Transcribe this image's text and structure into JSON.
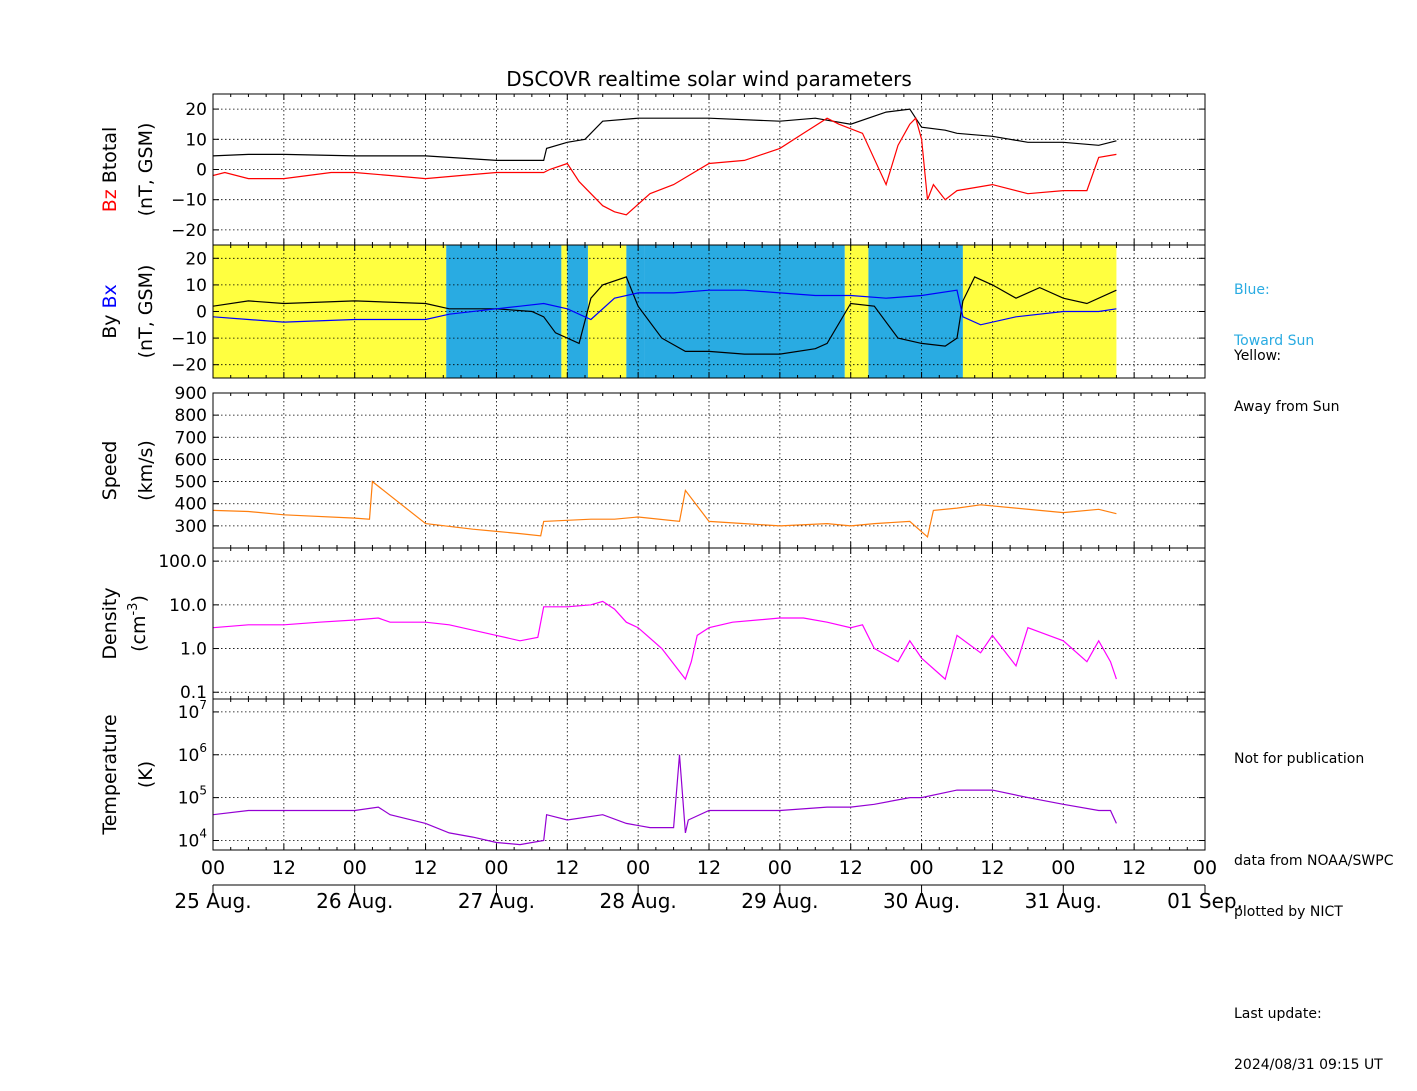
{
  "title": "DSCOVR realtime solar wind parameters",
  "colors": {
    "btotal": "#000000",
    "bz": "#ff0000",
    "by": "#000000",
    "bx": "#0000ff",
    "speed": "#ff7f0e",
    "density": "#ff00ff",
    "temperature": "#9400d3",
    "toward_sun": "#29abe2",
    "away_from_sun": "#ffff40"
  },
  "notes": {
    "toward_line1": "Blue:",
    "toward_line2": "Toward Sun",
    "away_line1": "Yellow:",
    "away_line2": "Away from Sun",
    "not_for_publication": "Not for publication",
    "data_from": "data from NOAA/SWPC",
    "plotted_by": "plotted by NICT",
    "last_update_label": "Last update:",
    "last_update_value": "2024/08/31 09:15 UT"
  },
  "chart_data": [
    {
      "type": "line",
      "panel": "magnetic-field-bz-btotal",
      "ylabel_parts": [
        "Bz",
        "Btotal",
        "(nT, GSM)"
      ],
      "ylim": [
        -25,
        25
      ],
      "yticks": [
        -20,
        -10,
        0,
        10,
        20
      ],
      "grid": true,
      "series": [
        {
          "name": "Btotal",
          "color": "#000000",
          "x": [
            0,
            6,
            12,
            24,
            36,
            48,
            56,
            56.5,
            60,
            63,
            66,
            72,
            84,
            96,
            102,
            108,
            114,
            118,
            120,
            124,
            126,
            132,
            138,
            144,
            150,
            153
          ],
          "y": [
            4.5,
            5,
            5,
            4.5,
            4.5,
            3,
            3,
            7,
            9,
            10,
            16,
            17,
            17,
            16,
            17,
            15,
            19,
            20,
            14,
            13,
            12,
            11,
            9,
            9,
            8,
            9.5
          ]
        },
        {
          "name": "Bz",
          "color": "#ff0000",
          "x": [
            0,
            2,
            6,
            12,
            20,
            24,
            30,
            36,
            42,
            48,
            56,
            57,
            60,
            62,
            66,
            68,
            70,
            74,
            78,
            84,
            90,
            96,
            100,
            104,
            106,
            110,
            114,
            116,
            118,
            119,
            120,
            121,
            122,
            124,
            126,
            132,
            138,
            144,
            148,
            150,
            153
          ],
          "y": [
            -2,
            -1,
            -3,
            -3,
            -1,
            -1,
            -2,
            -3,
            -2,
            -1,
            -1,
            0,
            2,
            -4,
            -12,
            -14,
            -15,
            -8,
            -5,
            2,
            3,
            7,
            12,
            17,
            15,
            12,
            -5,
            8,
            15,
            17,
            10,
            -10,
            -5,
            -10,
            -7,
            -5,
            -8,
            -7,
            -7,
            4,
            5
          ]
        }
      ]
    },
    {
      "type": "line",
      "panel": "magnetic-field-by-bx",
      "ylabel_parts": [
        "By",
        "Bx",
        "(nT, GSM)"
      ],
      "ylim": [
        -25,
        25
      ],
      "yticks": [
        -20,
        -10,
        0,
        10,
        20
      ],
      "grid": true,
      "sector_colors": {
        "blue": "#29abe2",
        "yellow": "#ffff40"
      },
      "sectors": [
        {
          "start": 0,
          "end": 39.5,
          "polarity": "away"
        },
        {
          "start": 39.5,
          "end": 59,
          "polarity": "toward"
        },
        {
          "start": 59,
          "end": 60,
          "polarity": "away"
        },
        {
          "start": 60,
          "end": 63.5,
          "polarity": "toward"
        },
        {
          "start": 63.5,
          "end": 70,
          "polarity": "away"
        },
        {
          "start": 70,
          "end": 73,
          "polarity": "toward"
        },
        {
          "start": 73,
          "end": 107,
          "polarity": "toward"
        },
        {
          "start": 107,
          "end": 111,
          "polarity": "away"
        },
        {
          "start": 111,
          "end": 127,
          "polarity": "toward"
        },
        {
          "start": 127,
          "end": 153,
          "polarity": "away"
        }
      ],
      "series": [
        {
          "name": "By",
          "color": "#000000",
          "x": [
            0,
            6,
            12,
            24,
            36,
            40,
            48,
            54,
            56,
            58,
            62,
            64,
            66,
            70,
            72,
            76,
            80,
            84,
            90,
            96,
            102,
            104,
            108,
            112,
            116,
            120,
            124,
            126,
            127,
            129,
            132,
            136,
            140,
            144,
            148,
            153
          ],
          "y": [
            2,
            4,
            3,
            4,
            3,
            1,
            1,
            0,
            -2,
            -8,
            -12,
            5,
            10,
            13,
            2,
            -10,
            -15,
            -15,
            -16,
            -16,
            -14,
            -12,
            3,
            2,
            -10,
            -12,
            -13,
            -10,
            4,
            13,
            10,
            5,
            9,
            5,
            3,
            8
          ]
        },
        {
          "name": "Bx",
          "color": "#0000ff",
          "x": [
            0,
            6,
            12,
            24,
            36,
            40,
            48,
            52,
            56,
            60,
            64,
            68,
            72,
            78,
            84,
            90,
            96,
            102,
            108,
            114,
            120,
            126,
            127,
            130,
            136,
            144,
            150,
            153
          ],
          "y": [
            -2,
            -3,
            -4,
            -3,
            -3,
            -1,
            1,
            2,
            3,
            1,
            -3,
            5,
            7,
            7,
            8,
            8,
            7,
            6,
            6,
            5,
            6,
            8,
            -2,
            -5,
            -2,
            0,
            0,
            1
          ]
        }
      ]
    },
    {
      "type": "line",
      "panel": "speed",
      "ylabel_parts": [
        "Speed",
        "(km/s)"
      ],
      "ylim": [
        200,
        900
      ],
      "yticks": [
        300,
        400,
        500,
        600,
        700,
        800,
        900
      ],
      "grid": true,
      "series": [
        {
          "name": "Speed",
          "color": "#ff7f0e",
          "x": [
            0,
            6,
            12,
            24,
            26.5,
            27,
            36,
            44,
            48,
            52,
            55.5,
            56,
            60,
            64,
            68,
            72,
            79,
            80,
            84,
            90,
            96,
            104,
            108,
            112,
            118,
            121,
            122,
            126,
            130,
            136,
            140,
            144,
            150,
            153
          ],
          "y": [
            370,
            365,
            350,
            335,
            330,
            500,
            310,
            285,
            275,
            265,
            255,
            320,
            325,
            330,
            330,
            340,
            320,
            460,
            320,
            310,
            300,
            310,
            300,
            310,
            320,
            250,
            370,
            380,
            395,
            380,
            370,
            360,
            375,
            355
          ]
        }
      ]
    },
    {
      "type": "line",
      "panel": "density",
      "ylabel_parts": [
        "Density",
        "(cm",
        "-3",
        ")"
      ],
      "yscale": "log",
      "ylim": [
        0.07,
        200
      ],
      "ytick_values": [
        0.1,
        1.0,
        10.0,
        100.0
      ],
      "yticks": [
        "0.1",
        "1.0",
        "10.0",
        "100.0"
      ],
      "grid": true,
      "series": [
        {
          "name": "Density",
          "color": "#ff00ff",
          "x": [
            0,
            6,
            12,
            18,
            24,
            28,
            30,
            36,
            40,
            48,
            52,
            55,
            56,
            60,
            64,
            66,
            68,
            70,
            72,
            76,
            80,
            81,
            82,
            84,
            88,
            96,
            100,
            104,
            108,
            110,
            112,
            116,
            118,
            120,
            124,
            126,
            130,
            132,
            136,
            138,
            144,
            148,
            150,
            152,
            153
          ],
          "y": [
            3,
            3.5,
            3.5,
            4,
            4.5,
            5,
            4,
            4,
            3.5,
            2,
            1.5,
            1.8,
            9,
            9,
            10,
            12,
            8,
            4,
            3,
            1,
            0.2,
            0.5,
            2,
            3,
            4,
            5,
            5,
            4,
            3,
            3.5,
            1,
            0.5,
            1.5,
            0.6,
            0.2,
            2,
            0.8,
            2,
            0.4,
            3,
            1.5,
            0.5,
            1.5,
            0.5,
            0.2
          ]
        }
      ]
    },
    {
      "type": "line",
      "panel": "temperature",
      "ylabel_parts": [
        "Temperature",
        "(K)"
      ],
      "yscale": "log",
      "ylim": [
        6000,
        20000000
      ],
      "ytick_values": [
        10000,
        100000,
        1000000,
        10000000
      ],
      "yticks": [
        {
          "base": "10",
          "exp": "4"
        },
        {
          "base": "10",
          "exp": "5"
        },
        {
          "base": "10",
          "exp": "6"
        },
        {
          "base": "10",
          "exp": "7"
        }
      ],
      "grid": true,
      "series": [
        {
          "name": "Temperature",
          "color": "#9400d3",
          "x": [
            0,
            6,
            12,
            20,
            24,
            28,
            30,
            36,
            40,
            44,
            48,
            52,
            56,
            56.5,
            60,
            66,
            70,
            74,
            78,
            79,
            80,
            80.5,
            84,
            96,
            104,
            108,
            112,
            118,
            120,
            126,
            132,
            138,
            144,
            150,
            152,
            153
          ],
          "y": [
            40000,
            50000,
            50000,
            50000,
            50000,
            60000,
            40000,
            25000,
            15000,
            12000,
            9000,
            8000,
            10000,
            40000,
            30000,
            40000,
            25000,
            20000,
            20000,
            1000000,
            15000,
            30000,
            50000,
            50000,
            60000,
            60000,
            70000,
            100000,
            100000,
            150000,
            150000,
            100000,
            70000,
            50000,
            50000,
            25000
          ]
        }
      ]
    }
  ],
  "x_axis": {
    "range_hours": [
      0,
      168
    ],
    "hour_labels": [
      "00",
      "12",
      "00",
      "12",
      "00",
      "12",
      "00",
      "12",
      "00",
      "12",
      "00",
      "12",
      "00",
      "12",
      "00"
    ],
    "date_labels": [
      "25 Aug.",
      "26 Aug.",
      "27 Aug.",
      "28 Aug.",
      "29 Aug.",
      "30 Aug.",
      "31 Aug.",
      "01 Sep."
    ]
  }
}
